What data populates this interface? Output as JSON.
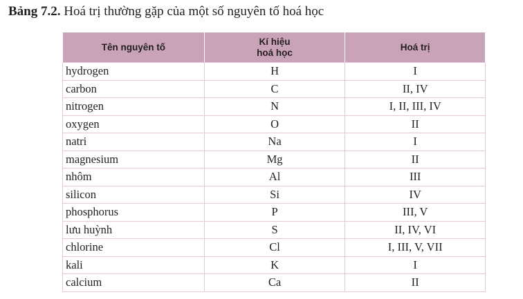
{
  "caption": {
    "label": "Bảng 7.2.",
    "text": " Hoá trị thường gặp của một số nguyên tố hoá học"
  },
  "table": {
    "headers": [
      "Tên nguyên tố",
      "Kí hiệu\nhoá học",
      "Hoá trị"
    ],
    "rows": [
      [
        "hydrogen",
        "H",
        "I"
      ],
      [
        "carbon",
        "C",
        "II, IV"
      ],
      [
        "nitrogen",
        "N",
        "I, II, III, IV"
      ],
      [
        "oxygen",
        "O",
        "II"
      ],
      [
        "natri",
        "Na",
        "I"
      ],
      [
        "magnesium",
        "Mg",
        "II"
      ],
      [
        "nhôm",
        "Al",
        "III"
      ],
      [
        "silicon",
        "Si",
        "IV"
      ],
      [
        "phosphorus",
        "P",
        "III, V"
      ],
      [
        "lưu huỳnh",
        "S",
        "II, IV, VI"
      ],
      [
        "chlorine",
        "Cl",
        "I, III, V, VII"
      ],
      [
        "kali",
        "K",
        "I"
      ],
      [
        "calcium",
        "Ca",
        "II"
      ]
    ]
  },
  "colors": {
    "header_bg": "#c9a3b8",
    "border": "#e6c9d6"
  }
}
